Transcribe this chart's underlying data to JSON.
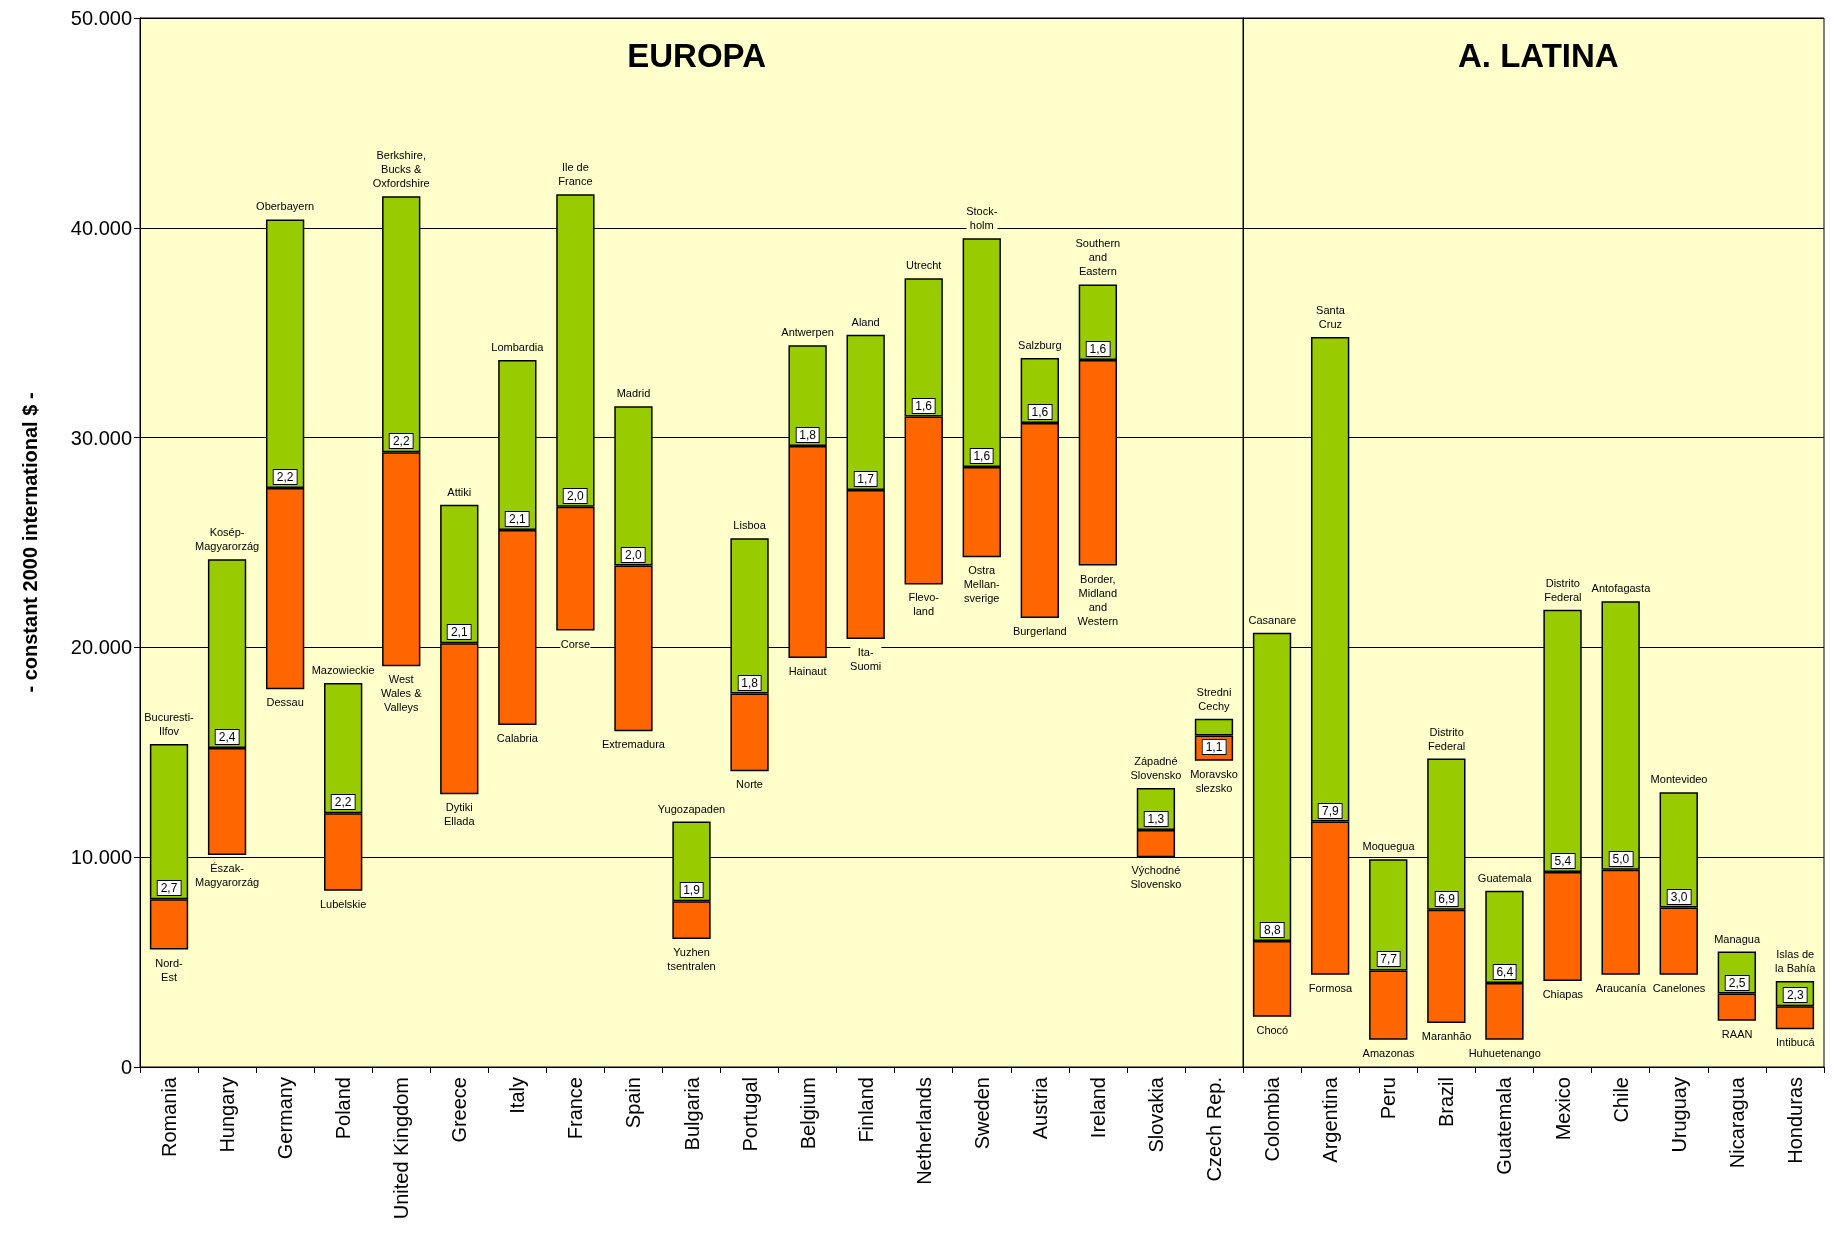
{
  "chart_data": [
    {
      "type": "bar",
      "title": "EUROPA",
      "ylabel": "- constant 2000 international $ -",
      "categories": [
        "Romania",
        "Hungary",
        "Germany",
        "Poland",
        "United Kingdom",
        "Greece",
        "Italy",
        "France",
        "Spain",
        "Bulgaria",
        "Portugal",
        "Belgium",
        "Finland",
        "Netherlands",
        "Sweden",
        "Austria",
        "Ireland",
        "Slovakia",
        "Czech Rep."
      ],
      "series": [
        {
          "color": "#ff6600",
          "base": [
            5600,
            10100,
            18000,
            8400,
            19100,
            13000,
            16300,
            20800,
            16000,
            6100,
            14100,
            19500,
            20400,
            23000,
            24300,
            21400,
            23900,
            10000,
            14600
          ],
          "values": [
            2400,
            5100,
            9600,
            3700,
            10200,
            7200,
            9300,
            5900,
            7900,
            1800,
            3700,
            10100,
            7100,
            8000,
            4300,
            9300,
            9800,
            1300,
            1200
          ]
        },
        {
          "color": "#99cc00",
          "base": [
            8000,
            15200,
            27600,
            12100,
            29300,
            20200,
            25600,
            26700,
            23900,
            7900,
            17800,
            29600,
            27500,
            31000,
            28600,
            30700,
            33700,
            11300,
            15800
          ],
          "values": [
            7400,
            9000,
            12800,
            6200,
            12200,
            6600,
            8100,
            14900,
            7600,
            3800,
            7400,
            4800,
            7400,
            6600,
            10900,
            3100,
            3600,
            2000,
            800
          ]
        }
      ],
      "ylim": [
        0,
        50000
      ],
      "yticks": [
        {
          "value": 0,
          "label": "0"
        },
        {
          "value": 10000,
          "label": "10.000"
        },
        {
          "value": 20000,
          "label": "20.000"
        },
        {
          "value": 30000,
          "label": "30.000"
        },
        {
          "value": 40000,
          "label": "40.000"
        },
        {
          "value": 50000,
          "label": "50.000"
        }
      ],
      "grid": "y",
      "annotations": [
        {
          "text": "Bucuresti-\nIlfov",
          "x": "Romania",
          "y": 15400
        },
        {
          "text": "2,7",
          "x": "Romania",
          "y": 8000
        },
        {
          "text": "Nord-\nEst",
          "x": "Romania",
          "y": 5600
        },
        {
          "text": "Kosép-\nMagyarorzág",
          "x": "Hungary",
          "y": 24200
        },
        {
          "text": "2,4",
          "x": "Hungary",
          "y": 15200
        },
        {
          "text": "Észak-\nMagyarorzág",
          "x": "Hungary",
          "y": 10100
        },
        {
          "text": "Oberbayern",
          "x": "Germany",
          "y": 40400
        },
        {
          "text": "2,2",
          "x": "Germany",
          "y": 27600
        },
        {
          "text": "Dessau",
          "x": "Germany",
          "y": 18000
        },
        {
          "text": "Mazowieckie",
          "x": "Poland",
          "y": 18300
        },
        {
          "text": "2,2",
          "x": "Poland",
          "y": 12100
        },
        {
          "text": "Lubelskie",
          "x": "Poland",
          "y": 8400
        },
        {
          "text": "Berkshire,\nBucks &\nOxfordshire",
          "x": "United Kingdom",
          "y": 41500
        },
        {
          "text": "2,2",
          "x": "United Kingdom",
          "y": 29300
        },
        {
          "text": "West\nWales &\nValleys",
          "x": "United Kingdom",
          "y": 19100
        },
        {
          "text": "Attiki",
          "x": "Greece",
          "y": 26800
        },
        {
          "text": "2,1",
          "x": "Greece",
          "y": 20200
        },
        {
          "text": "Dytiki\nEllada",
          "x": "Greece",
          "y": 13000
        },
        {
          "text": "Lombardia",
          "x": "Italy",
          "y": 33700
        },
        {
          "text": "2,1",
          "x": "Italy",
          "y": 25600
        },
        {
          "text": "Calabria",
          "x": "Italy",
          "y": 16300
        },
        {
          "text": "Ile de\nFrance",
          "x": "France",
          "y": 41600
        },
        {
          "text": "2,0",
          "x": "France",
          "y": 26700
        },
        {
          "text": "Corse",
          "x": "France",
          "y": 20800
        },
        {
          "text": "Madrid",
          "x": "Spain",
          "y": 31500
        },
        {
          "text": "2,0",
          "x": "Spain",
          "y": 23900
        },
        {
          "text": "Extremadura",
          "x": "Spain",
          "y": 16000
        },
        {
          "text": "Yugozapaden",
          "x": "Bulgaria",
          "y": 11700
        },
        {
          "text": "1,9",
          "x": "Bulgaria",
          "y": 7900
        },
        {
          "text": "Yuzhen\ntsentralen",
          "x": "Bulgaria",
          "y": 6100
        },
        {
          "text": "Lisboa",
          "x": "Portugal",
          "y": 25200
        },
        {
          "text": "1,8",
          "x": "Portugal",
          "y": 17800
        },
        {
          "text": "Norte",
          "x": "Portugal",
          "y": 14100
        },
        {
          "text": "Antwerpen",
          "x": "Belgium",
          "y": 34400
        },
        {
          "text": "1,8",
          "x": "Belgium",
          "y": 29600
        },
        {
          "text": "Hainaut",
          "x": "Belgium",
          "y": 19500
        },
        {
          "text": "Aland",
          "x": "Finland",
          "y": 34900
        },
        {
          "text": "1,7",
          "x": "Finland",
          "y": 27500
        },
        {
          "text": "Ita-\nSuomi",
          "x": "Finland",
          "y": 20400
        },
        {
          "text": "Utrecht",
          "x": "Netherlands",
          "y": 37600
        },
        {
          "text": "1,6",
          "x": "Netherlands",
          "y": 31000
        },
        {
          "text": "Flevo-\nland",
          "x": "Netherlands",
          "y": 23000
        },
        {
          "text": "Stock-\nholm",
          "x": "Sweden",
          "y": 39500
        },
        {
          "text": "1,6",
          "x": "Sweden",
          "y": 28600
        },
        {
          "text": "Ostra\nMellan-\nsverige",
          "x": "Sweden",
          "y": 24300
        },
        {
          "text": "Salzburg",
          "x": "Austria",
          "y": 33800
        },
        {
          "text": "1,6",
          "x": "Austria",
          "y": 30700
        },
        {
          "text": "Burgerland",
          "x": "Austria",
          "y": 21400
        },
        {
          "text": "Southern\nand\nEastern",
          "x": "Ireland",
          "y": 37300
        },
        {
          "text": "1,6",
          "x": "Ireland",
          "y": 33700
        },
        {
          "text": "Border,\nMidland\nand\nWestern",
          "x": "Ireland",
          "y": 23900
        },
        {
          "text": "Západné\nSlovensko",
          "x": "Slovakia",
          "y": 13300
        },
        {
          "text": "1,3",
          "x": "Slovakia",
          "y": 11300
        },
        {
          "text": "Východné\nSlovensko",
          "x": "Slovakia",
          "y": 10000
        },
        {
          "text": "Stredni\nCechy",
          "x": "Czech Rep.",
          "y": 16600
        },
        {
          "text": "1,1",
          "x": "Czech Rep.",
          "y": 15800
        },
        {
          "text": "Moravsko\nslezsko",
          "x": "Czech Rep.",
          "y": 14600
        }
      ]
    },
    {
      "type": "bar",
      "title": "A. LATINA",
      "categories": [
        "Colombia",
        "Argentina",
        "Peru",
        "Brazil",
        "Guatemala",
        "Mexico",
        "Chile",
        "Uruguay",
        "Nicaragua",
        "Honduras"
      ],
      "series": [
        {
          "color": "#ff6600",
          "base": [
            2400,
            4400,
            1300,
            2100,
            1300,
            4100,
            4400,
            4400,
            2200,
            1800
          ],
          "values": [
            3600,
            7300,
            3300,
            5400,
            2700,
            5200,
            5000,
            3200,
            1300,
            1100
          ]
        },
        {
          "color": "#99cc00",
          "base": [
            6000,
            11700,
            4600,
            7500,
            4000,
            9300,
            9400,
            7600,
            3500,
            2900
          ],
          "values": [
            14700,
            23100,
            5300,
            7200,
            4400,
            12500,
            12800,
            5500,
            2000,
            1200
          ]
        }
      ],
      "ylim": [
        0,
        50000
      ],
      "yticks": [
        0,
        10000,
        20000,
        30000,
        40000,
        50000
      ],
      "grid": "y",
      "tick_labels": "x",
      "annotations": [
        {
          "text": "Casanare",
          "x": "Colombia",
          "y": 20700
        },
        {
          "text": "8,8",
          "x": "Colombia",
          "y": 6000
        },
        {
          "text": "Chocó",
          "x": "Colombia",
          "y": 2400
        },
        {
          "text": "Santa\nCruz",
          "x": "Argentina",
          "y": 34800
        },
        {
          "text": "7,9",
          "x": "Argentina",
          "y": 11700
        },
        {
          "text": "Formosa",
          "x": "Argentina",
          "y": 4400
        },
        {
          "text": "Moquegua",
          "x": "Peru",
          "y": 9900
        },
        {
          "text": "7,7",
          "x": "Peru",
          "y": 4600
        },
        {
          "text": "Amazonas",
          "x": "Peru",
          "y": 1300
        },
        {
          "text": "Distrito\nFederal",
          "x": "Brazil",
          "y": 14700
        },
        {
          "text": "6,9",
          "x": "Brazil",
          "y": 7500
        },
        {
          "text": "Maranhão",
          "x": "Brazil",
          "y": 2100
        },
        {
          "text": "Guatemala",
          "x": "Guatemala",
          "y": 8400
        },
        {
          "text": "6,4",
          "x": "Guatemala",
          "y": 4000
        },
        {
          "text": "Huhuetenango",
          "x": "Guatemala",
          "y": 1300
        },
        {
          "text": "Distrito\nFederal",
          "x": "Mexico",
          "y": 21800
        },
        {
          "text": "5,4",
          "x": "Mexico",
          "y": 9300
        },
        {
          "text": "Chiapas",
          "x": "Mexico",
          "y": 4100
        },
        {
          "text": "Antofagasta",
          "x": "Chile",
          "y": 22200
        },
        {
          "text": "5,0",
          "x": "Chile",
          "y": 9400
        },
        {
          "text": "Araucanía",
          "x": "Chile",
          "y": 4400
        },
        {
          "text": "Montevideo",
          "x": "Uruguay",
          "y": 13100
        },
        {
          "text": "3,0",
          "x": "Uruguay",
          "y": 7600
        },
        {
          "text": "Canelones",
          "x": "Uruguay",
          "y": 4400
        },
        {
          "text": "Managua",
          "x": "Nicaragua",
          "y": 5500
        },
        {
          "text": "2,5",
          "x": "Nicaragua",
          "y": 3500
        },
        {
          "text": "RAAN",
          "x": "Nicaragua",
          "y": 2200
        },
        {
          "text": "Islas de\nla Bahía",
          "x": "Honduras",
          "y": 4100
        },
        {
          "text": "2,3",
          "x": "Honduras",
          "y": 2900
        },
        {
          "text": "Intibucá",
          "x": "Honduras",
          "y": 1800
        }
      ]
    }
  ]
}
